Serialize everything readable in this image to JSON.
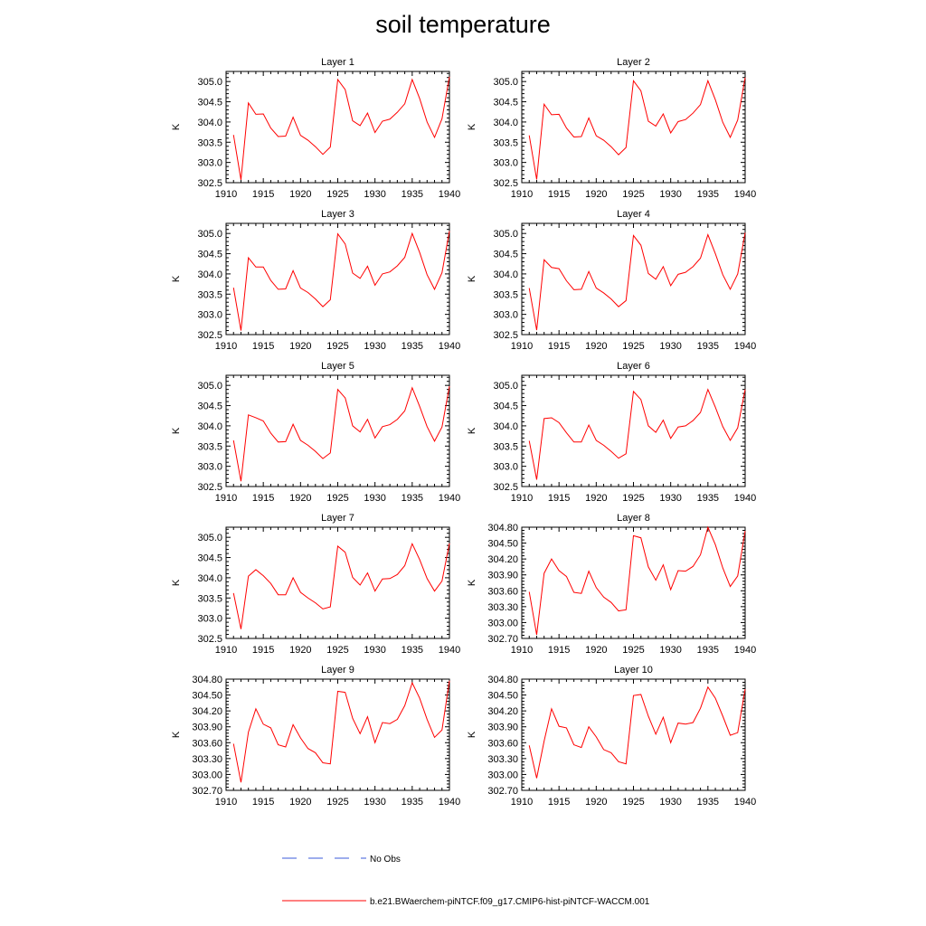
{
  "title": "soil temperature",
  "legend": {
    "obs_label": "No Obs",
    "obs_color": "#3b5bdb",
    "model_label": "b.e21.BWaerchem-piNTCF.f09_g17.CMIP6-hist-piNTCF-WACCM.001",
    "model_color": "#ff0000"
  },
  "chart_data": [
    {
      "type": "line",
      "title": "Layer 1",
      "ylabel": "K",
      "xlim": [
        1910,
        1940
      ],
      "ylim": [
        302.5,
        305.25
      ],
      "yticks": [
        "302.5",
        "303.0",
        "303.5",
        "304.0",
        "304.5",
        "305.0"
      ],
      "xticks": [
        "1910",
        "1915",
        "1920",
        "1925",
        "1930",
        "1935",
        "1940"
      ],
      "x": [
        1911,
        1912,
        1913,
        1914,
        1915,
        1916,
        1917,
        1918,
        1919,
        1920,
        1921,
        1922,
        1923,
        1924,
        1925,
        1926,
        1927,
        1928,
        1929,
        1930,
        1931,
        1932,
        1933,
        1934,
        1935,
        1936,
        1937,
        1938,
        1939,
        1940
      ],
      "series": [
        {
          "name": "b.e21.BWaerchem-piNTCF.f09_g17.CMIP6-hist-piNTCF-WACCM.001",
          "values": [
            303.68,
            302.57,
            304.47,
            304.19,
            304.2,
            303.85,
            303.64,
            303.65,
            304.12,
            303.67,
            303.55,
            303.39,
            303.2,
            303.38,
            305.05,
            304.8,
            304.03,
            303.91,
            304.22,
            303.74,
            304.02,
            304.07,
            304.24,
            304.45,
            305.05,
            304.58,
            304.0,
            303.62,
            304.08,
            305.12
          ]
        }
      ]
    },
    {
      "type": "line",
      "title": "Layer 2",
      "ylabel": "K",
      "xlim": [
        1910,
        1940
      ],
      "ylim": [
        302.5,
        305.25
      ],
      "yticks": [
        "302.5",
        "303.0",
        "303.5",
        "304.0",
        "304.5",
        "305.0"
      ],
      "xticks": [
        "1910",
        "1915",
        "1920",
        "1925",
        "1930",
        "1935",
        "1940"
      ],
      "x": [
        1911,
        1912,
        1913,
        1914,
        1915,
        1916,
        1917,
        1918,
        1919,
        1920,
        1921,
        1922,
        1923,
        1924,
        1925,
        1926,
        1927,
        1928,
        1929,
        1930,
        1931,
        1932,
        1933,
        1934,
        1935,
        1936,
        1937,
        1938,
        1939,
        1940
      ],
      "series": [
        {
          "name": "b.e21.BWaerchem-piNTCF.f09_g17.CMIP6-hist-piNTCF-WACCM.001",
          "values": [
            303.67,
            302.58,
            304.44,
            304.18,
            304.19,
            303.85,
            303.63,
            303.64,
            304.1,
            303.66,
            303.55,
            303.39,
            303.19,
            303.37,
            305.02,
            304.77,
            304.02,
            303.9,
            304.2,
            303.73,
            304.01,
            304.06,
            304.22,
            304.43,
            305.02,
            304.55,
            303.99,
            303.62,
            304.05,
            305.1
          ]
        }
      ]
    },
    {
      "type": "line",
      "title": "Layer 3",
      "ylabel": "K",
      "xlim": [
        1910,
        1940
      ],
      "ylim": [
        302.5,
        305.25
      ],
      "yticks": [
        "302.5",
        "303.0",
        "303.5",
        "304.0",
        "304.5",
        "305.0"
      ],
      "xticks": [
        "1910",
        "1915",
        "1920",
        "1925",
        "1930",
        "1935",
        "1940"
      ],
      "x": [
        1911,
        1912,
        1913,
        1914,
        1915,
        1916,
        1917,
        1918,
        1919,
        1920,
        1921,
        1922,
        1923,
        1924,
        1925,
        1926,
        1927,
        1928,
        1929,
        1930,
        1931,
        1932,
        1933,
        1934,
        1935,
        1936,
        1937,
        1938,
        1939,
        1940
      ],
      "series": [
        {
          "name": "b.e21.BWaerchem-piNTCF.f09_g17.CMIP6-hist-piNTCF-WACCM.001",
          "values": [
            303.66,
            302.6,
            304.4,
            304.17,
            304.17,
            303.84,
            303.62,
            303.63,
            304.08,
            303.65,
            303.54,
            303.38,
            303.19,
            303.36,
            304.99,
            304.74,
            304.02,
            303.89,
            304.19,
            303.72,
            304.0,
            304.05,
            304.2,
            304.41,
            305.0,
            304.53,
            303.98,
            303.62,
            304.03,
            305.06
          ]
        }
      ]
    },
    {
      "type": "line",
      "title": "Layer 4",
      "ylabel": "K",
      "xlim": [
        1910,
        1940
      ],
      "ylim": [
        302.5,
        305.25
      ],
      "yticks": [
        "302.5",
        "303.0",
        "303.5",
        "304.0",
        "304.5",
        "305.0"
      ],
      "xticks": [
        "1910",
        "1915",
        "1920",
        "1925",
        "1930",
        "1935",
        "1940"
      ],
      "x": [
        1911,
        1912,
        1913,
        1914,
        1915,
        1916,
        1917,
        1918,
        1919,
        1920,
        1921,
        1922,
        1923,
        1924,
        1925,
        1926,
        1927,
        1928,
        1929,
        1930,
        1931,
        1932,
        1933,
        1934,
        1935,
        1936,
        1937,
        1938,
        1939,
        1940
      ],
      "series": [
        {
          "name": "b.e21.BWaerchem-piNTCF.f09_g17.CMIP6-hist-piNTCF-WACCM.001",
          "values": [
            303.65,
            302.61,
            304.35,
            304.16,
            304.13,
            303.83,
            303.61,
            303.62,
            304.06,
            303.65,
            303.53,
            303.38,
            303.19,
            303.34,
            304.95,
            304.71,
            304.01,
            303.87,
            304.18,
            303.71,
            303.99,
            304.04,
            304.18,
            304.39,
            304.97,
            304.5,
            303.98,
            303.62,
            304.0,
            305.02
          ]
        }
      ]
    },
    {
      "type": "line",
      "title": "Layer 5",
      "ylabel": "K",
      "xlim": [
        1910,
        1940
      ],
      "ylim": [
        302.5,
        305.25
      ],
      "yticks": [
        "302.5",
        "303.0",
        "303.5",
        "304.0",
        "304.5",
        "305.0"
      ],
      "xticks": [
        "1910",
        "1915",
        "1920",
        "1925",
        "1930",
        "1935",
        "1940"
      ],
      "x": [
        1911,
        1912,
        1913,
        1914,
        1915,
        1916,
        1917,
        1918,
        1919,
        1920,
        1921,
        1922,
        1923,
        1924,
        1925,
        1926,
        1927,
        1928,
        1929,
        1930,
        1931,
        1932,
        1933,
        1934,
        1935,
        1936,
        1937,
        1938,
        1939,
        1940
      ],
      "series": [
        {
          "name": "b.e21.BWaerchem-piNTCF.f09_g17.CMIP6-hist-piNTCF-WACCM.001",
          "values": [
            303.64,
            302.63,
            304.27,
            304.2,
            304.12,
            303.82,
            303.6,
            303.61,
            304.04,
            303.64,
            303.52,
            303.37,
            303.19,
            303.33,
            304.9,
            304.69,
            304.0,
            303.85,
            304.16,
            303.7,
            303.98,
            304.03,
            304.16,
            304.37,
            304.94,
            304.48,
            303.98,
            303.62,
            303.97,
            304.98
          ]
        }
      ]
    },
    {
      "type": "line",
      "title": "Layer 6",
      "ylabel": "K",
      "xlim": [
        1910,
        1940
      ],
      "ylim": [
        302.5,
        305.25
      ],
      "yticks": [
        "302.5",
        "303.0",
        "303.5",
        "304.0",
        "304.5",
        "305.0"
      ],
      "xticks": [
        "1910",
        "1915",
        "1920",
        "1925",
        "1930",
        "1935",
        "1940"
      ],
      "x": [
        1911,
        1912,
        1913,
        1914,
        1915,
        1916,
        1917,
        1918,
        1919,
        1920,
        1921,
        1922,
        1923,
        1924,
        1925,
        1926,
        1927,
        1928,
        1929,
        1930,
        1931,
        1932,
        1933,
        1934,
        1935,
        1936,
        1937,
        1938,
        1939,
        1940
      ],
      "series": [
        {
          "name": "b.e21.BWaerchem-piNTCF.f09_g17.CMIP6-hist-piNTCF-WACCM.001",
          "values": [
            303.63,
            302.67,
            304.18,
            304.2,
            304.08,
            303.83,
            303.6,
            303.6,
            304.02,
            303.64,
            303.52,
            303.37,
            303.2,
            303.31,
            304.85,
            304.65,
            304.0,
            303.84,
            304.14,
            303.69,
            303.97,
            304.0,
            304.13,
            304.33,
            304.9,
            304.46,
            303.98,
            303.64,
            303.95,
            304.9
          ]
        }
      ]
    },
    {
      "type": "line",
      "title": "Layer 7",
      "ylabel": "K",
      "xlim": [
        1910,
        1940
      ],
      "ylim": [
        302.5,
        305.25
      ],
      "yticks": [
        "302.5",
        "303.0",
        "303.5",
        "304.0",
        "304.5",
        "305.0"
      ],
      "xticks": [
        "1910",
        "1915",
        "1920",
        "1925",
        "1930",
        "1935",
        "1940"
      ],
      "x": [
        1911,
        1912,
        1913,
        1914,
        1915,
        1916,
        1917,
        1918,
        1919,
        1920,
        1921,
        1922,
        1923,
        1924,
        1925,
        1926,
        1927,
        1928,
        1929,
        1930,
        1931,
        1932,
        1933,
        1934,
        1935,
        1936,
        1937,
        1938,
        1939,
        1940
      ],
      "series": [
        {
          "name": "b.e21.BWaerchem-piNTCF.f09_g17.CMIP6-hist-piNTCF-WACCM.001",
          "values": [
            303.62,
            302.73,
            304.04,
            304.2,
            304.05,
            303.86,
            303.58,
            303.58,
            304.0,
            303.64,
            303.5,
            303.38,
            303.23,
            303.28,
            304.78,
            304.63,
            304.01,
            303.82,
            304.12,
            303.67,
            303.97,
            303.98,
            304.08,
            304.3,
            304.84,
            304.45,
            303.98,
            303.67,
            303.92,
            304.85
          ]
        }
      ]
    },
    {
      "type": "line",
      "title": "Layer 8",
      "ylabel": "K",
      "xlim": [
        1910,
        1940
      ],
      "ylim": [
        302.7,
        304.8
      ],
      "yticks": [
        "302.70",
        "303.00",
        "303.30",
        "303.60",
        "303.90",
        "304.20",
        "304.50",
        "304.80"
      ],
      "xticks": [
        "1910",
        "1915",
        "1920",
        "1925",
        "1930",
        "1935",
        "1940"
      ],
      "x": [
        1911,
        1912,
        1913,
        1914,
        1915,
        1916,
        1917,
        1918,
        1919,
        1920,
        1921,
        1922,
        1923,
        1924,
        1925,
        1926,
        1927,
        1928,
        1929,
        1930,
        1931,
        1932,
        1933,
        1934,
        1935,
        1936,
        1937,
        1938,
        1939,
        1940
      ],
      "series": [
        {
          "name": "b.e21.BWaerchem-piNTCF.f09_g17.CMIP6-hist-piNTCF-WACCM.001",
          "values": [
            303.58,
            302.77,
            303.93,
            304.2,
            303.98,
            303.87,
            303.57,
            303.55,
            303.97,
            303.66,
            303.48,
            303.38,
            303.22,
            303.24,
            304.64,
            304.6,
            304.05,
            303.8,
            304.09,
            303.62,
            303.98,
            303.97,
            304.06,
            304.28,
            304.8,
            304.47,
            304.03,
            303.68,
            303.88,
            304.73
          ]
        }
      ]
    },
    {
      "type": "line",
      "title": "Layer 9",
      "ylabel": "K",
      "xlim": [
        1910,
        1940
      ],
      "ylim": [
        302.7,
        304.8
      ],
      "yticks": [
        "302.70",
        "303.00",
        "303.30",
        "303.60",
        "303.90",
        "304.20",
        "304.50",
        "304.80"
      ],
      "xticks": [
        "1910",
        "1915",
        "1920",
        "1925",
        "1930",
        "1935",
        "1940"
      ],
      "x": [
        1911,
        1912,
        1913,
        1914,
        1915,
        1916,
        1917,
        1918,
        1919,
        1920,
        1921,
        1922,
        1923,
        1924,
        1925,
        1926,
        1927,
        1928,
        1929,
        1930,
        1931,
        1932,
        1933,
        1934,
        1935,
        1936,
        1937,
        1938,
        1939,
        1940
      ],
      "series": [
        {
          "name": "b.e21.BWaerchem-piNTCF.f09_g17.CMIP6-hist-piNTCF-WACCM.001",
          "values": [
            303.58,
            302.85,
            303.8,
            304.24,
            303.95,
            303.88,
            303.56,
            303.52,
            303.94,
            303.69,
            303.49,
            303.41,
            303.22,
            303.2,
            304.57,
            304.55,
            304.06,
            303.77,
            304.09,
            303.6,
            303.98,
            303.96,
            304.04,
            304.3,
            304.73,
            304.44,
            304.04,
            303.7,
            303.84,
            304.77
          ]
        }
      ]
    },
    {
      "type": "line",
      "title": "Layer 10",
      "ylabel": "K",
      "xlim": [
        1910,
        1940
      ],
      "ylim": [
        302.7,
        304.8
      ],
      "yticks": [
        "302.70",
        "303.00",
        "303.30",
        "303.60",
        "303.90",
        "304.20",
        "304.50",
        "304.80"
      ],
      "xticks": [
        "1910",
        "1915",
        "1920",
        "1925",
        "1930",
        "1935",
        "1940"
      ],
      "x": [
        1911,
        1912,
        1913,
        1914,
        1915,
        1916,
        1917,
        1918,
        1919,
        1920,
        1921,
        1922,
        1923,
        1924,
        1925,
        1926,
        1927,
        1928,
        1929,
        1930,
        1931,
        1932,
        1933,
        1934,
        1935,
        1936,
        1937,
        1938,
        1939,
        1940
      ],
      "series": [
        {
          "name": "b.e21.BWaerchem-piNTCF.f09_g17.CMIP6-hist-piNTCF-WACCM.001",
          "values": [
            303.55,
            302.93,
            303.63,
            304.24,
            303.91,
            303.88,
            303.56,
            303.51,
            303.9,
            303.71,
            303.47,
            303.41,
            303.24,
            303.2,
            304.49,
            304.51,
            304.1,
            303.76,
            304.08,
            303.6,
            303.97,
            303.95,
            303.98,
            304.25,
            304.65,
            304.44,
            304.1,
            303.74,
            303.79,
            304.61
          ]
        }
      ]
    }
  ]
}
